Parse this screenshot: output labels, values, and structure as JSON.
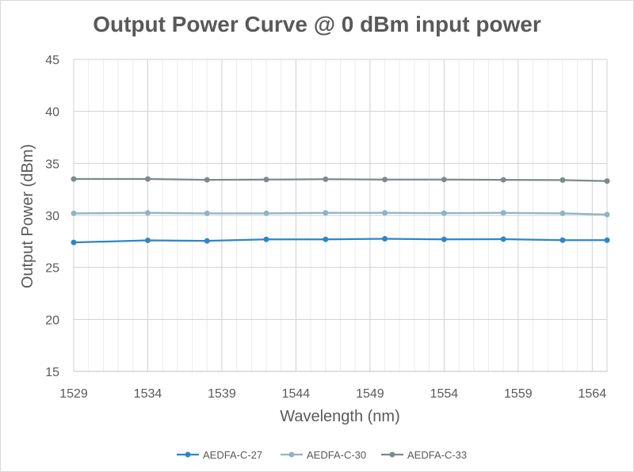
{
  "chart_data": {
    "type": "line",
    "title": "Output Power Curve @ 0 dBm input power",
    "xlabel": "Wavelength (nm)",
    "ylabel": "Output Power (dBm)",
    "xlim": [
      1529,
      1565
    ],
    "ylim": [
      15,
      45
    ],
    "xticks": [
      1529,
      1534,
      1539,
      1544,
      1549,
      1554,
      1559,
      1564
    ],
    "yticks": [
      15,
      20,
      25,
      30,
      35,
      40,
      45
    ],
    "grid": true,
    "legend_position": "bottom",
    "x": [
      1529,
      1534,
      1538,
      1542,
      1546,
      1550,
      1554,
      1558,
      1562,
      1566
    ],
    "series": [
      {
        "name": "AEDFA-C-27",
        "color": "#2e86c8",
        "values": [
          27.4,
          27.6,
          27.55,
          27.7,
          27.7,
          27.75,
          27.7,
          27.72,
          27.62,
          27.62
        ]
      },
      {
        "name": "AEDFA-C-30",
        "color": "#8fb3c8",
        "values": [
          30.2,
          30.25,
          30.2,
          30.2,
          30.25,
          30.25,
          30.22,
          30.25,
          30.2,
          30.08
        ]
      },
      {
        "name": "AEDFA-C-33",
        "color": "#7b8a8e",
        "values": [
          33.5,
          33.5,
          33.42,
          33.45,
          33.48,
          33.45,
          33.45,
          33.42,
          33.4,
          33.3
        ]
      }
    ]
  }
}
